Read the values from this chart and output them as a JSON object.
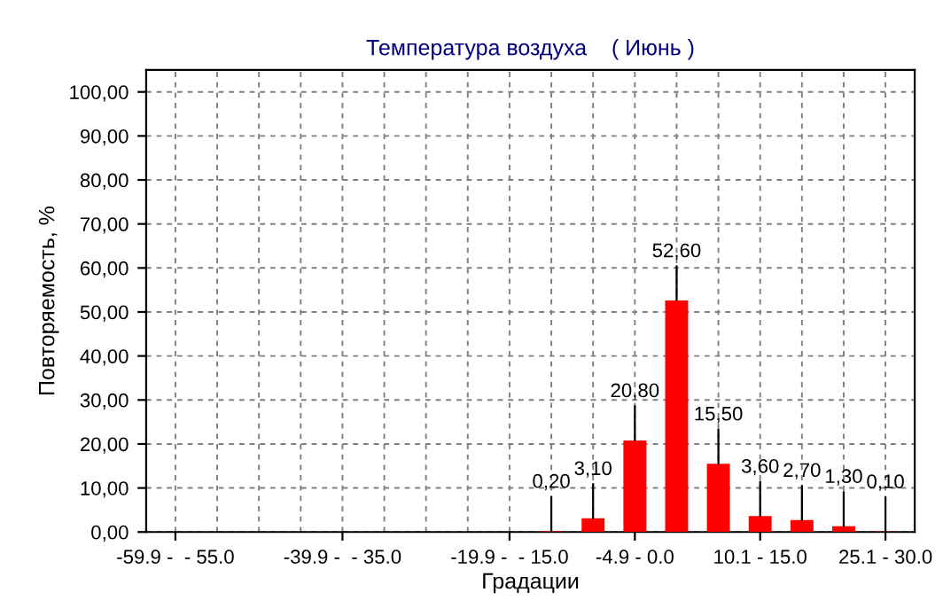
{
  "chart_data": {
    "type": "bar",
    "title": "Температура воздуха    ( Июнь )",
    "xlabel": "Градации",
    "ylabel": "Повторяемость, %",
    "categories": [
      "-59.9 -  - 55.0",
      null,
      null,
      null,
      "-39.9 -  - 35.0",
      null,
      null,
      null,
      "-19.9 -  - 15.0",
      null,
      null,
      "-4.9 - 0.0",
      null,
      null,
      "10.1 - 15.0",
      null,
      null,
      "25.1 - 30.0"
    ],
    "values": [
      null,
      null,
      null,
      null,
      null,
      null,
      null,
      null,
      null,
      0.2,
      3.1,
      20.8,
      52.6,
      15.5,
      3.6,
      2.7,
      1.3,
      0.1
    ],
    "value_labels": [
      null,
      null,
      null,
      null,
      null,
      null,
      null,
      null,
      null,
      "0,20",
      "3,10",
      "20,80",
      "52,60",
      "15,50",
      "3,60",
      "2,70",
      "1,30",
      "0,10"
    ],
    "color": "#ff0000",
    "ylim": [
      0,
      105
    ],
    "yticks": [
      {
        "value": 0,
        "label": "0,00"
      },
      {
        "value": 10,
        "label": "10,00"
      },
      {
        "value": 20,
        "label": "20,00"
      },
      {
        "value": 30,
        "label": "30,00"
      },
      {
        "value": 40,
        "label": "40,00"
      },
      {
        "value": 50,
        "label": "50,00"
      },
      {
        "value": 60,
        "label": "60,00"
      },
      {
        "value": 70,
        "label": "70,00"
      },
      {
        "value": 80,
        "label": "80,00"
      },
      {
        "value": 90,
        "label": "90,00"
      },
      {
        "value": 100,
        "label": "100,00"
      }
    ],
    "grid": true
  }
}
